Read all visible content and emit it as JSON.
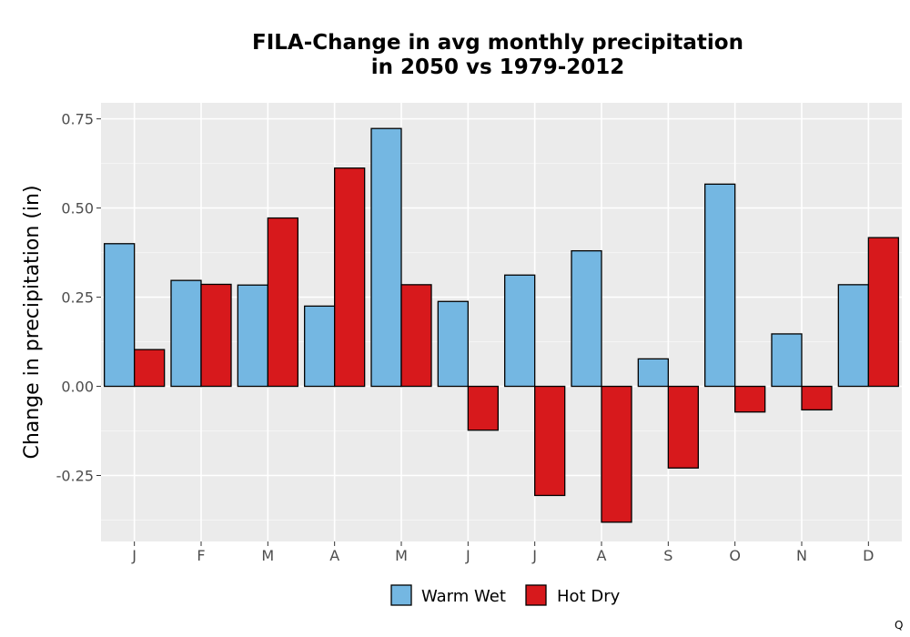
{
  "chart_data": {
    "type": "bar",
    "title": "FILA-Change in avg monthly precipitation in 2050 vs 1979-2012",
    "title_lines": [
      "FILA-Change in avg monthly precipitation",
      "in 2050 vs 1979-2012"
    ],
    "xlabel": "",
    "ylabel": "Change in precipitation (in)",
    "categories": [
      "J",
      "F",
      "M",
      "A",
      "M",
      "J",
      "J",
      "A",
      "S",
      "O",
      "N",
      "D"
    ],
    "series": [
      {
        "name": "Warm Wet",
        "color": "#74b7e2",
        "values": [
          0.4,
          0.297,
          0.284,
          0.225,
          0.723,
          0.238,
          0.312,
          0.38,
          0.077,
          0.567,
          0.147,
          0.285
        ]
      },
      {
        "name": "Hot Dry",
        "color": "#d7191c",
        "values": [
          0.103,
          0.286,
          0.472,
          0.612,
          0.285,
          -0.123,
          -0.306,
          -0.381,
          -0.229,
          -0.072,
          -0.066,
          0.417
        ]
      }
    ],
    "ylim": [
      -0.435,
      0.795
    ],
    "yticks": [
      -0.25,
      0.0,
      0.25,
      0.5,
      0.75
    ],
    "ytick_labels": [
      "-0.25",
      "0.00",
      "0.25",
      "0.50",
      "0.75"
    ],
    "grid": true,
    "legend_position": "bottom",
    "panel_background": "#ebebeb",
    "gridline_color": "#ffffff"
  },
  "corner_mark": "Q"
}
